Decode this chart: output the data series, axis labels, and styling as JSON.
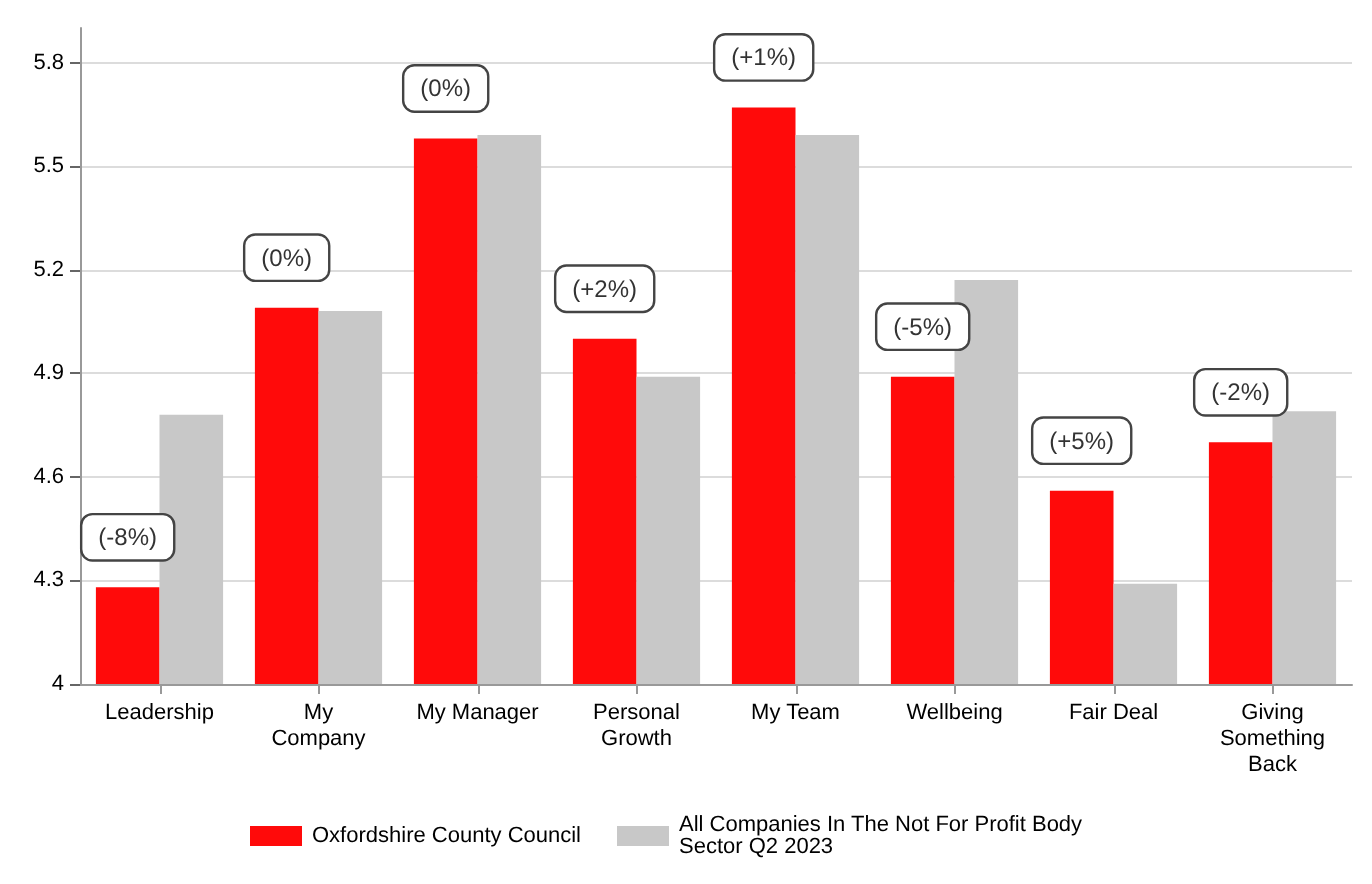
{
  "chart_data": {
    "type": "bar",
    "categories": [
      "Leadership",
      "My\nCompany",
      "My Manager",
      "Personal\nGrowth",
      "My Team",
      "Wellbeing",
      "Fair Deal",
      "Giving\nSomething\nBack"
    ],
    "series": [
      {
        "name": "Oxfordshire County Council",
        "color": "#ff0a0a",
        "values": [
          4.28,
          5.09,
          5.58,
          5.0,
          5.67,
          4.89,
          4.56,
          4.7
        ]
      },
      {
        "name": "All Companies In The Not For Profit Body Sector Q2 2023",
        "color": "#c8c8c8",
        "values": [
          4.78,
          5.08,
          5.59,
          4.89,
          5.59,
          5.17,
          4.29,
          4.79
        ]
      }
    ],
    "annotations": [
      {
        "text": "(-8%)",
        "x": "Leadership",
        "y": 4.28
      },
      {
        "text": "(0%)",
        "x": "My\nCompany",
        "y": 5.09
      },
      {
        "text": "(0%)",
        "x": "My Manager",
        "y": 5.58
      },
      {
        "text": "(+2%)",
        "x": "Personal\nGrowth",
        "y": 5.0
      },
      {
        "text": "(+1%)",
        "x": "My Team",
        "y": 5.67
      },
      {
        "text": "(-5%)",
        "x": "Wellbeing",
        "y": 4.89
      },
      {
        "text": "(+5%)",
        "x": "Fair Deal",
        "y": 4.56
      },
      {
        "text": "(-2%)",
        "x": "Giving\nSomething\nBack",
        "y": 4.7
      }
    ],
    "ylim": [
      4,
      5.9
    ],
    "yticks": [
      4,
      4.3,
      4.6,
      4.9,
      5.2,
      5.5,
      5.8
    ],
    "grid": "y",
    "legend": "bottom"
  }
}
